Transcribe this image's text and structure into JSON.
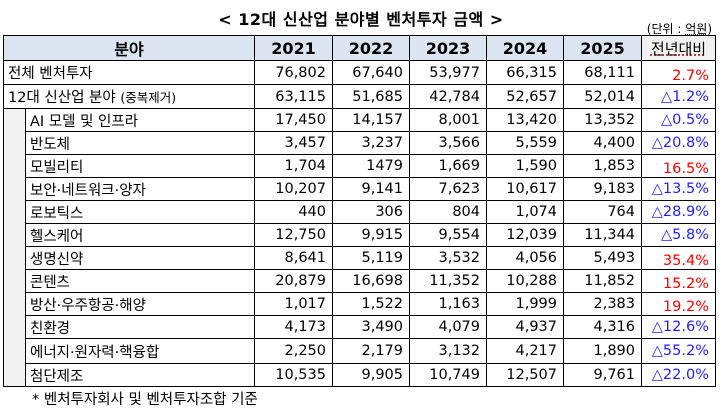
{
  "title": "< 12대 신산업 분야별 벤처투자 금액 >",
  "unit": {
    "prefix": "(단위 : ",
    "value": "억원",
    "suffix": ")"
  },
  "header": {
    "category": "분야",
    "years": [
      "2021",
      "2022",
      "2023",
      "2024",
      "2025"
    ],
    "yoy": "전년대비"
  },
  "rows": {
    "total": {
      "label": "전체 벤처투자",
      "values": [
        "76,802",
        "67,640",
        "53,977",
        "66,315",
        "68,111"
      ],
      "yoy": "2.7%",
      "direction": "up"
    },
    "sector12": {
      "label": "12대 신산업 분야",
      "note": "(중복제거)",
      "values": [
        "63,115",
        "51,685",
        "42,784",
        "52,657",
        "52,014"
      ],
      "yoy": "△1.2%",
      "direction": "down"
    }
  },
  "sub_rows": [
    {
      "label": "AI 모델 및 인프라",
      "values": [
        "17,450",
        "14,157",
        "8,001",
        "13,420",
        "13,352"
      ],
      "yoy": "△0.5%",
      "direction": "down"
    },
    {
      "label": "반도체",
      "values": [
        "3,457",
        "3,237",
        "3,566",
        "5,559",
        "4,400"
      ],
      "yoy": "△20.8%",
      "direction": "down"
    },
    {
      "label": "모빌리티",
      "values": [
        "1,704",
        "1479",
        "1,669",
        "1,590",
        "1,853"
      ],
      "yoy": "16.5%",
      "direction": "up"
    },
    {
      "label": "보안·네트워크·양자",
      "values": [
        "10,207",
        "9,141",
        "7,623",
        "10,617",
        "9,183"
      ],
      "yoy": "△13.5%",
      "direction": "down"
    },
    {
      "label": "로보틱스",
      "values": [
        "440",
        "306",
        "804",
        "1,074",
        "764"
      ],
      "yoy": "△28.9%",
      "direction": "down"
    },
    {
      "label": "헬스케어",
      "values": [
        "12,750",
        "9,915",
        "9,554",
        "12,039",
        "11,344"
      ],
      "yoy": "△5.8%",
      "direction": "down"
    },
    {
      "label": "생명신약",
      "values": [
        "8,641",
        "5,119",
        "3,532",
        "4,056",
        "5,493"
      ],
      "yoy": "35.4%",
      "direction": "up"
    },
    {
      "label": "콘텐츠",
      "values": [
        "20,879",
        "16,698",
        "11,352",
        "10,288",
        "11,852"
      ],
      "yoy": "15.2%",
      "direction": "up"
    },
    {
      "label": "방산·우주항공·해양",
      "values": [
        "1,017",
        "1,522",
        "1,163",
        "1,999",
        "2,383"
      ],
      "yoy": "19.2%",
      "direction": "up"
    },
    {
      "label": "친환경",
      "values": [
        "4,173",
        "3,490",
        "4,079",
        "4,937",
        "4,316"
      ],
      "yoy": "△12.6%",
      "direction": "down"
    },
    {
      "label": "에너지·원자력·핵융합",
      "values": [
        "2,250",
        "2,179",
        "3,132",
        "4,217",
        "1,890"
      ],
      "yoy": "△55.2%",
      "direction": "down"
    },
    {
      "label": "첨단제조",
      "values": [
        "10,535",
        "9,905",
        "10,749",
        "12,507",
        "9,761"
      ],
      "yoy": "△22.0%",
      "direction": "down"
    }
  ],
  "footnote": "* 벤처투자회사 및 벤처투자조합 기준",
  "colors": {
    "header_bg": "#dce6f2",
    "indent_bg": "#f2f2f2",
    "increase": "#ff0000",
    "decrease": "#1f1fff"
  }
}
